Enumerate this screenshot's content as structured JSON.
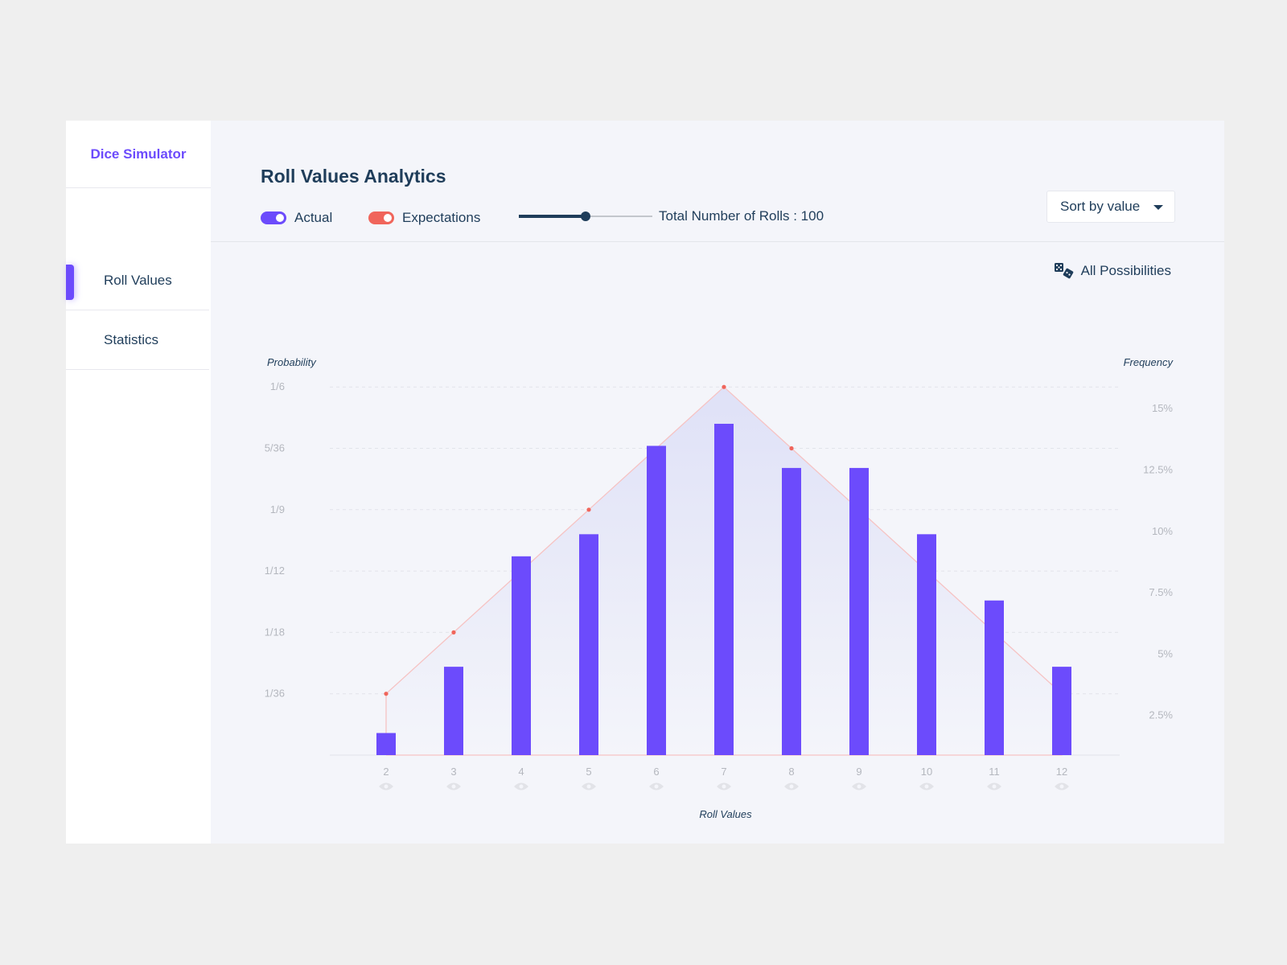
{
  "sidebar": {
    "brand": "Dice Simulator",
    "items": [
      {
        "label": "Roll Values",
        "active": true
      },
      {
        "label": "Statistics",
        "active": false
      }
    ]
  },
  "header": {
    "title": "Roll Values Analytics",
    "toggles": [
      {
        "label": "Actual",
        "on": true,
        "color": "#6c4bfc"
      },
      {
        "label": "Expectations",
        "on": true,
        "color": "#f0655b"
      }
    ],
    "slider_fraction": 0.5,
    "rolls_label": "Total Number of Rolls : 100",
    "sort_label": "Sort by value",
    "all_possibilities": "All Possibilities"
  },
  "chart_data": {
    "type": "bar",
    "categories": [
      "2",
      "3",
      "4",
      "5",
      "6",
      "7",
      "8",
      "9",
      "10",
      "11",
      "12"
    ],
    "series": [
      {
        "name": "Actual",
        "type": "bar",
        "color": "#6c4bfc",
        "values": [
          1,
          4,
          9,
          10,
          14,
          15,
          13,
          13,
          10,
          7,
          4
        ],
        "unit": "rolls of 100"
      },
      {
        "name": "Expectations",
        "type": "line",
        "color": "#f0655b",
        "values": [
          0.02778,
          0.05556,
          0.08333,
          0.11111,
          0.13889,
          0.16667,
          0.13889,
          0.11111,
          0.08333,
          0.05556,
          0.02778
        ]
      }
    ],
    "xlabel": "Roll Values",
    "ylabel_left": "Probability",
    "ylabel_right": "Frequency",
    "left_ticks": [
      "1/36",
      "1/18",
      "1/12",
      "1/9",
      "5/36",
      "1/6"
    ],
    "right_ticks": [
      "2.5%",
      "5%",
      "7.5%",
      "10%",
      "12.5%",
      "15%"
    ],
    "ylim": [
      0,
      0.16667
    ],
    "grid": true
  }
}
